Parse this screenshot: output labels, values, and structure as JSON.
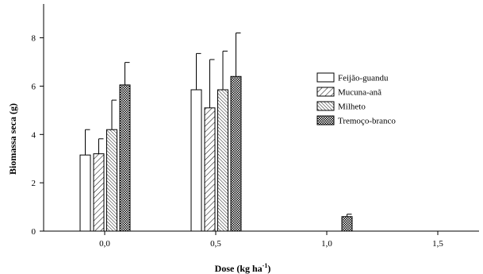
{
  "chart_data": {
    "type": "bar",
    "ylabel": "Biomassa seca (g)",
    "xlabel_main": "Dose (kg ha",
    "xlabel_sup": "-1",
    "xlabel_close": ")",
    "ylim": [
      0,
      9.4
    ],
    "yticks": [
      0,
      2,
      4,
      6,
      8
    ],
    "categories": [
      "0,0",
      "0,5",
      "1,0",
      "1,5"
    ],
    "legend_position": "right",
    "grid": false,
    "series": [
      {
        "name": "Feijão-guandu",
        "pattern": "white",
        "values": [
          3.15,
          5.85,
          null,
          null
        ],
        "errors": [
          1.05,
          1.5,
          null,
          null
        ]
      },
      {
        "name": "Mucuna-anã",
        "pattern": "hatch-wide",
        "values": [
          3.2,
          5.1,
          null,
          null
        ],
        "errors": [
          0.62,
          2.0,
          null,
          null
        ]
      },
      {
        "name": "Milheto",
        "pattern": "hatch-dense",
        "values": [
          4.2,
          5.85,
          null,
          null
        ],
        "errors": [
          1.22,
          1.6,
          null,
          null
        ]
      },
      {
        "name": "Tremoço-branco",
        "pattern": "crosshatch",
        "values": [
          6.05,
          6.4,
          0.6,
          null
        ],
        "errors": [
          0.93,
          1.8,
          0.1,
          null
        ]
      }
    ]
  }
}
